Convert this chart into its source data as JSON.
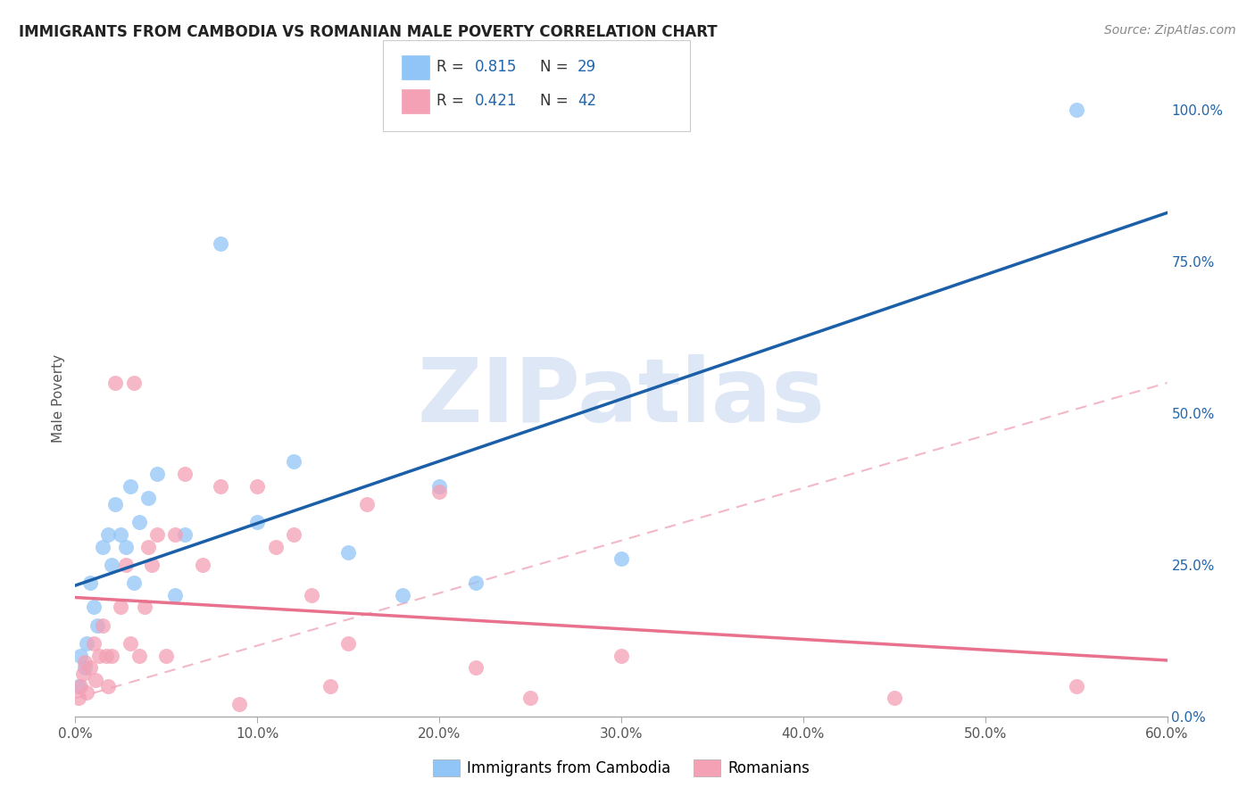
{
  "title": "IMMIGRANTS FROM CAMBODIA VS ROMANIAN MALE POVERTY CORRELATION CHART",
  "source": "Source: ZipAtlas.com",
  "xlabel_ticks": [
    "0.0%",
    "10.0%",
    "20.0%",
    "30.0%",
    "40.0%",
    "50.0%",
    "60.0%"
  ],
  "xlabel_vals": [
    0,
    10,
    20,
    30,
    40,
    50,
    60
  ],
  "ylabel": "Male Poverty",
  "right_axis_ticks": [
    "0.0%",
    "25.0%",
    "50.0%",
    "75.0%",
    "100.0%"
  ],
  "right_axis_vals": [
    0,
    25,
    50,
    75,
    100
  ],
  "cambodia_color": "#92c5f7",
  "romanian_color": "#f4a0b5",
  "cambodia_line_color": "#1a5fa8",
  "romanian_line_color": "#e8718d",
  "cambodia_R": 0.815,
  "cambodia_N": 29,
  "romanian_R": 0.421,
  "romanian_N": 42,
  "legend_label_cambodia": "Immigrants from Cambodia",
  "legend_label_romanian": "Romanians",
  "cambodia_x": [
    0.2,
    0.3,
    0.5,
    0.6,
    0.8,
    1.0,
    1.2,
    1.5,
    1.8,
    2.0,
    2.2,
    2.5,
    2.8,
    3.0,
    3.2,
    3.5,
    4.0,
    4.5,
    5.5,
    6.0,
    8.0,
    10.0,
    12.0,
    15.0,
    18.0,
    20.0,
    22.0,
    30.0,
    55.0
  ],
  "cambodia_y": [
    5,
    10,
    8,
    12,
    22,
    18,
    15,
    28,
    30,
    25,
    35,
    30,
    28,
    38,
    22,
    32,
    36,
    40,
    20,
    30,
    78,
    32,
    42,
    27,
    20,
    38,
    22,
    26,
    100
  ],
  "romanian_x": [
    0.2,
    0.3,
    0.4,
    0.5,
    0.6,
    0.8,
    1.0,
    1.1,
    1.3,
    1.5,
    1.7,
    1.8,
    2.0,
    2.2,
    2.5,
    2.8,
    3.0,
    3.2,
    3.5,
    3.8,
    4.0,
    4.2,
    4.5,
    5.0,
    5.5,
    6.0,
    7.0,
    8.0,
    9.0,
    10.0,
    11.0,
    12.0,
    13.0,
    14.0,
    15.0,
    16.0,
    20.0,
    22.0,
    25.0,
    30.0,
    45.0,
    55.0
  ],
  "romanian_y": [
    3,
    5,
    7,
    9,
    4,
    8,
    12,
    6,
    10,
    15,
    10,
    5,
    10,
    55,
    18,
    25,
    12,
    55,
    10,
    18,
    28,
    25,
    30,
    10,
    30,
    40,
    25,
    38,
    2,
    38,
    28,
    30,
    20,
    5,
    12,
    35,
    37,
    8,
    3,
    10,
    3,
    5
  ],
  "xlim": [
    0,
    60
  ],
  "ylim": [
    0,
    105
  ],
  "background_color": "#ffffff",
  "grid_color": "#cccccc",
  "title_fontsize": 12,
  "watermark_text": "ZIPatlas",
  "watermark_color": "#c8d8f0"
}
